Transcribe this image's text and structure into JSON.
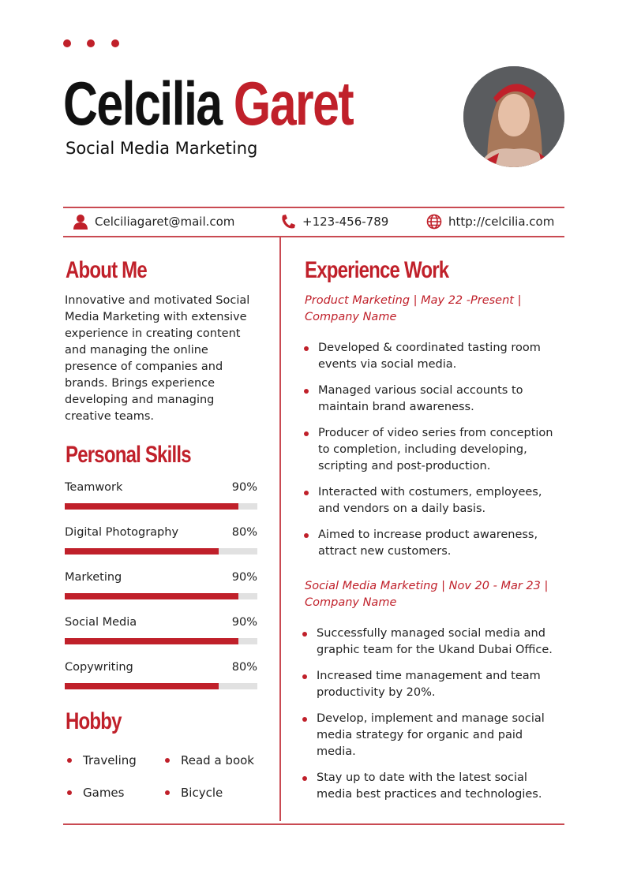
{
  "header": {
    "first_name": "Celcilia",
    "last_name": "Garet",
    "title": "Social Media Marketing"
  },
  "contact": {
    "email": "Celciliagaret@mail.com",
    "phone": "+123-456-789",
    "website": "http://celcilia.com"
  },
  "about": {
    "heading": "About Me",
    "text": "Innovative and motivated Social Media Marketing with extensive experience in creating content and managing the online presence of companies and brands. Brings experience developing and managing creative teams."
  },
  "skills": {
    "heading": "Personal Skills",
    "items": [
      {
        "label": "Teamwork",
        "value": "90%",
        "level": 90
      },
      {
        "label": "Digital Photography",
        "value": "80%",
        "level": 80
      },
      {
        "label": "Marketing",
        "value": "90%",
        "level": 90
      },
      {
        "label": "Social Media",
        "value": "90%",
        "level": 90
      },
      {
        "label": "Copywriting",
        "value": "80%",
        "level": 80
      }
    ]
  },
  "hobby": {
    "heading": "Hobby",
    "items": [
      "Traveling",
      "Read a book",
      "Games",
      "Bicycle"
    ]
  },
  "experience": {
    "heading": "Experience Work",
    "jobs": [
      {
        "title": "Product Marketing | May 22 -Present | Company Name",
        "bullets": [
          "Developed & coordinated tasting room events via social media.",
          "Managed various social accounts to maintain brand awareness.",
          "Producer of video series from conception to completion, including developing, scripting and post-production.",
          "Interacted with costumers, employees, and vendors on a daily basis.",
          "Aimed to increase product awareness, attract new customers."
        ]
      },
      {
        "title": "Social Media Marketing | Nov 20 - Mar 23 | Company Name",
        "bullets": [
          "Successfully managed social media and graphic team for the Ukand Dubai Office.",
          "Increased time management and team productivity by 20%.",
          "Develop, implement and manage social media strategy for organic and paid media.",
          "Stay up to date with the latest social media best practices and technologies."
        ]
      }
    ]
  },
  "colors": {
    "accent": "#c0202a"
  }
}
